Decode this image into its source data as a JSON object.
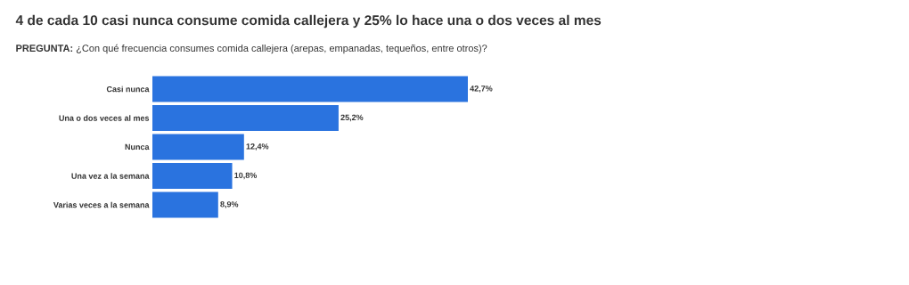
{
  "chart_data": {
    "type": "bar",
    "orientation": "horizontal",
    "title": "4 de cada 10 casi nunca consume comida callejera y 25% lo hace una o dos veces al mes",
    "subtitle": "**PREGUNTA:** ¿Con qué frecuencia consumes comida callejera (arepas, empanadas, tequeños, entre otros)?",
    "categories": [
      "Casi nunca",
      "Una o dos veces al mes",
      "Nunca",
      "Una vez a la semana",
      "Varias veces a la semana"
    ],
    "values": [
      42.7,
      25.2,
      12.4,
      10.8,
      8.9
    ],
    "value_labels": [
      "42,7%",
      "25,2%",
      "12,4%",
      "10,8%",
      "8,9%"
    ],
    "color": "#2a73df"
  }
}
